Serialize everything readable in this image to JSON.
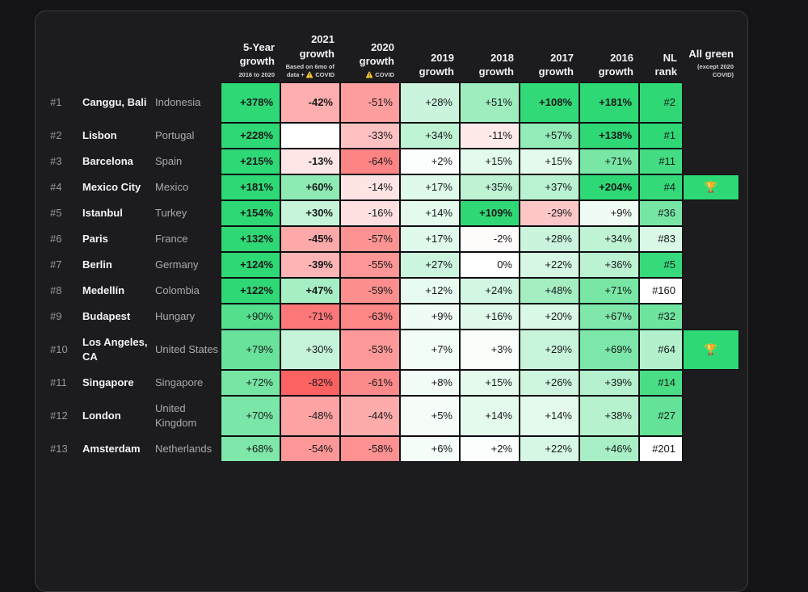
{
  "table": {
    "columns": [
      {
        "label": "5-Year growth",
        "sub": "2016 to 2020"
      },
      {
        "label": "2021 growth",
        "sub": "Based on 6mo of data + ⚠️ COVID"
      },
      {
        "label": "2020 growth",
        "sub": "⚠️ COVID"
      },
      {
        "label": "2019 growth",
        "sub": ""
      },
      {
        "label": "2018 growth",
        "sub": ""
      },
      {
        "label": "2017 growth",
        "sub": ""
      },
      {
        "label": "2016 growth",
        "sub": ""
      },
      {
        "label": "NL rank",
        "sub": ""
      },
      {
        "label": "All green",
        "sub": "(except 2020 COVID)"
      }
    ],
    "rows": [
      {
        "rank": "#1",
        "city": "Canggu, Bali",
        "country": "Indonesia",
        "tall": true,
        "values": [
          "+378%",
          "-42%",
          "-51%",
          "+28%",
          "+51%",
          "+108%",
          "+181%"
        ],
        "nl_rank": "#2",
        "all_green": false
      },
      {
        "rank": "#2",
        "city": "Lisbon",
        "country": "Portugal",
        "tall": false,
        "values": [
          "+228%",
          "",
          "-33%",
          "+34%",
          "-11%",
          "+57%",
          "+138%"
        ],
        "nl_rank": "#1",
        "all_green": false
      },
      {
        "rank": "#3",
        "city": "Barcelona",
        "country": "Spain",
        "tall": false,
        "values": [
          "+215%",
          "-13%",
          "-64%",
          "+2%",
          "+15%",
          "+15%",
          "+71%"
        ],
        "nl_rank": "#11",
        "all_green": false
      },
      {
        "rank": "#4",
        "city": "Mexico City",
        "country": "Mexico",
        "tall": false,
        "values": [
          "+181%",
          "+60%",
          "-14%",
          "+17%",
          "+35%",
          "+37%",
          "+204%"
        ],
        "nl_rank": "#4",
        "all_green": true
      },
      {
        "rank": "#5",
        "city": "Istanbul",
        "country": "Turkey",
        "tall": false,
        "values": [
          "+154%",
          "+30%",
          "-16%",
          "+14%",
          "+109%",
          "-29%",
          "+9%"
        ],
        "nl_rank": "#36",
        "all_green": false
      },
      {
        "rank": "#6",
        "city": "Paris",
        "country": "France",
        "tall": false,
        "values": [
          "+132%",
          "-45%",
          "-57%",
          "+17%",
          "-2%",
          "+28%",
          "+34%"
        ],
        "nl_rank": "#83",
        "all_green": false
      },
      {
        "rank": "#7",
        "city": "Berlin",
        "country": "Germany",
        "tall": false,
        "values": [
          "+124%",
          "-39%",
          "-55%",
          "+27%",
          "0%",
          "+22%",
          "+36%"
        ],
        "nl_rank": "#5",
        "all_green": false
      },
      {
        "rank": "#8",
        "city": "Medellín",
        "country": "Colombia",
        "tall": false,
        "values": [
          "+122%",
          "+47%",
          "-59%",
          "+12%",
          "+24%",
          "+48%",
          "+71%"
        ],
        "nl_rank": "#160",
        "all_green": false
      },
      {
        "rank": "#9",
        "city": "Budapest",
        "country": "Hungary",
        "tall": false,
        "values": [
          "+90%",
          "-71%",
          "-63%",
          "+9%",
          "+16%",
          "+20%",
          "+67%"
        ],
        "nl_rank": "#32",
        "all_green": false
      },
      {
        "rank": "#10",
        "city": "Los Angeles, CA",
        "country": "United States",
        "tall": true,
        "values": [
          "+79%",
          "+30%",
          "-53%",
          "+7%",
          "+3%",
          "+29%",
          "+69%"
        ],
        "nl_rank": "#64",
        "all_green": true
      },
      {
        "rank": "#11",
        "city": "Singapore",
        "country": "Singapore",
        "tall": false,
        "values": [
          "+72%",
          "-82%",
          "-61%",
          "+8%",
          "+15%",
          "+26%",
          "+39%"
        ],
        "nl_rank": "#14",
        "all_green": false
      },
      {
        "rank": "#12",
        "city": "London",
        "country": "United Kingdom",
        "tall": true,
        "values": [
          "+70%",
          "-48%",
          "-44%",
          "+5%",
          "+14%",
          "+14%",
          "+38%"
        ],
        "nl_rank": "#27",
        "all_green": false
      },
      {
        "rank": "#13",
        "city": "Amsterdam",
        "country": "Netherlands",
        "tall": false,
        "values": [
          "+68%",
          "-54%",
          "-58%",
          "+6%",
          "+2%",
          "+22%",
          "+46%"
        ],
        "nl_rank": "#201",
        "all_green": false
      }
    ]
  },
  "colors": {
    "green_full": "#2ed874",
    "red_full": "#fc5c5c",
    "cell_white": "#ffffff",
    "panel_bg": "#1c1c1f",
    "page_bg": "#141416"
  },
  "icons": {
    "trophy": "🏆",
    "warning": "⚠️"
  }
}
